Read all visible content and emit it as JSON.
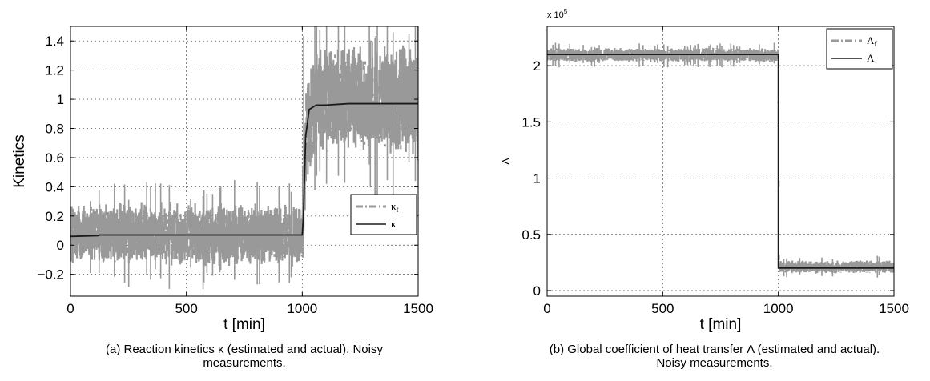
{
  "chart_data": [
    {
      "type": "line",
      "panel": "a",
      "xlabel": "t [min]",
      "ylabel": "Kinetics",
      "xlim": [
        0,
        1500
      ],
      "ylim": [
        -0.35,
        1.5
      ],
      "xticks": [
        "0",
        "500",
        "1000",
        "1500"
      ],
      "xtick_values": [
        0,
        500,
        1000,
        1500
      ],
      "yticks": [
        "−0.2",
        "0",
        "0.2",
        "0.4",
        "0.6",
        "0.8",
        "1",
        "1.2",
        "1.4"
      ],
      "ytick_values": [
        -0.2,
        0,
        0.2,
        0.4,
        0.6,
        0.8,
        1,
        1.2,
        1.4
      ],
      "grid": true,
      "legend_position": "center-right",
      "caption_lines": [
        "(a) Reaction kinetics κ (estimated and actual). Noisy",
        "measurements."
      ],
      "series": [
        {
          "name": "κ_f",
          "legend_main": "κ",
          "legend_sub": "f",
          "style": "dash-dot",
          "color": "#999999",
          "x": [
            0,
            500,
            1000,
            1010,
            1020,
            1050,
            1100,
            1500
          ],
          "y": [
            0.07,
            0.07,
            0.07,
            0.4,
            0.8,
            0.95,
            0.97,
            0.97
          ],
          "noise_band": {
            "before_1000": [
              -0.15,
              0.3
            ],
            "after_1000": [
              0.6,
              1.4
            ]
          }
        },
        {
          "name": "κ",
          "legend_main": "κ",
          "legend_sub": "",
          "style": "solid",
          "color": "#1a1a1a",
          "x": [
            0,
            120,
            125,
            500,
            1000,
            1005,
            1015,
            1030,
            1060,
            1100,
            1200,
            1500
          ],
          "y": [
            0.06,
            0.065,
            0.07,
            0.07,
            0.07,
            0.2,
            0.75,
            0.93,
            0.96,
            0.96,
            0.97,
            0.97
          ]
        }
      ]
    },
    {
      "type": "line",
      "panel": "b",
      "xlabel": "t [min]",
      "ylabel": "Λ",
      "multiplier": "x 10",
      "multiplier_exp": "5",
      "xlim": [
        0,
        1500
      ],
      "ylim": [
        -0.05,
        2.35
      ],
      "xticks": [
        "0",
        "500",
        "1000",
        "1500"
      ],
      "xtick_values": [
        0,
        500,
        1000,
        1500
      ],
      "yticks": [
        "0",
        "0.5",
        "1",
        "1.5",
        "2"
      ],
      "ytick_values": [
        0,
        0.5,
        1,
        1.5,
        2
      ],
      "grid": true,
      "legend_position": "top-right",
      "caption_lines": [
        "(b) Global coefficient of heat transfer Λ (estimated and actual).",
        "Noisy measurements."
      ],
      "series": [
        {
          "name": "Λ_f",
          "legend_main": "Λ",
          "legend_sub": "f",
          "style": "dash-dot",
          "color": "#999999",
          "x": [
            0,
            5,
            10,
            1000,
            1003,
            1500
          ],
          "y": [
            0.75,
            2.08,
            2.09,
            2.09,
            0.21,
            0.21
          ],
          "noise_band": {
            "before_1000": [
              2.03,
              2.16
            ],
            "after_1000": [
              0.15,
              0.27
            ]
          }
        },
        {
          "name": "Λ",
          "legend_main": "Λ",
          "legend_sub": "",
          "style": "solid",
          "color": "#1a1a1a",
          "x": [
            0,
            1000,
            1000,
            1500
          ],
          "y": [
            2.1,
            2.1,
            0.2,
            0.2
          ]
        }
      ]
    }
  ]
}
